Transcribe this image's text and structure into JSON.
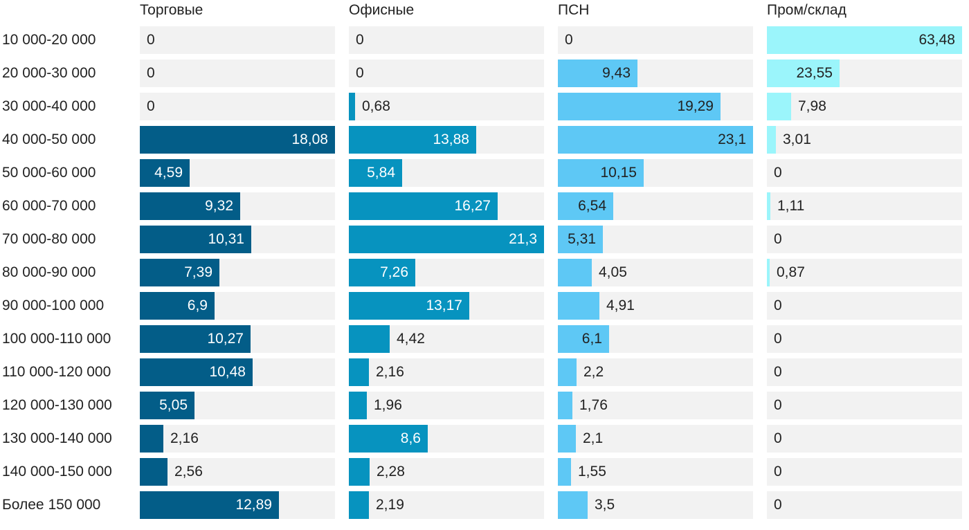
{
  "chart_data": {
    "type": "bar",
    "orientation": "horizontal",
    "layout": "small-multiples",
    "categories": [
      "10 000-20 000",
      "20 000-30 000",
      "30 000-40 000",
      "40 000-50 000",
      "50 000-60 000",
      "60 000-70 000",
      "70 000-80 000",
      "80 000-90 000",
      "90 000-100 000",
      "100 000-110 000",
      "110 000-120 000",
      "120 000-130 000",
      "130 000-140 000",
      "140 000-150 000",
      "Более 150 000"
    ],
    "series": [
      {
        "name": "Торговые",
        "color": "#035d88",
        "inside_text_color": "#ffffff",
        "values": [
          0,
          0,
          0,
          18.08,
          4.59,
          9.32,
          10.31,
          7.39,
          6.9,
          10.27,
          10.48,
          5.05,
          2.16,
          2.56,
          12.89
        ],
        "labels": [
          "0",
          "0",
          "0",
          "18,08",
          "4,59",
          "9,32",
          "10,31",
          "7,39",
          "6,9",
          "10,27",
          "10,48",
          "5,05",
          "2,16",
          "2,56",
          "12,89"
        ]
      },
      {
        "name": "Офисные",
        "color": "#0793bf",
        "inside_text_color": "#ffffff",
        "values": [
          0,
          0,
          0.68,
          13.88,
          5.84,
          16.27,
          21.3,
          7.26,
          13.17,
          4.42,
          2.16,
          1.96,
          8.6,
          2.28,
          2.19
        ],
        "labels": [
          "0",
          "0",
          "0,68",
          "13,88",
          "5,84",
          "16,27",
          "21,3",
          "7,26",
          "13,17",
          "4,42",
          "2,16",
          "1,96",
          "8,6",
          "2,28",
          "2,19"
        ]
      },
      {
        "name": "ПСН",
        "color": "#5ec8f5",
        "inside_text_color": "#222222",
        "values": [
          0,
          9.43,
          19.29,
          23.1,
          10.15,
          6.54,
          5.31,
          4.05,
          4.91,
          6.1,
          2.2,
          1.76,
          2.1,
          1.55,
          3.5
        ],
        "labels": [
          "0",
          "9,43",
          "19,29",
          "23,1",
          "10,15",
          "6,54",
          "5,31",
          "4,05",
          "4,91",
          "6,1",
          "2,2",
          "1,76",
          "2,1",
          "1,55",
          "3,5"
        ]
      },
      {
        "name": "Пром/склад",
        "color": "#9bf5fb",
        "inside_text_color": "#222222",
        "values": [
          63.48,
          23.55,
          7.98,
          3.01,
          0,
          1.11,
          0,
          0.87,
          0,
          0,
          0,
          0,
          0,
          0,
          0
        ],
        "labels": [
          "63,48",
          "23,55",
          "7,98",
          "3,01",
          "0",
          "1,11",
          "0",
          "0,87",
          "0",
          "0",
          "0",
          "0",
          "0",
          "0",
          "0"
        ]
      }
    ],
    "track_color": "#f2f2f2",
    "text_color": "#222222",
    "panel_max": [
      18.08,
      21.3,
      23.1,
      63.48
    ]
  }
}
